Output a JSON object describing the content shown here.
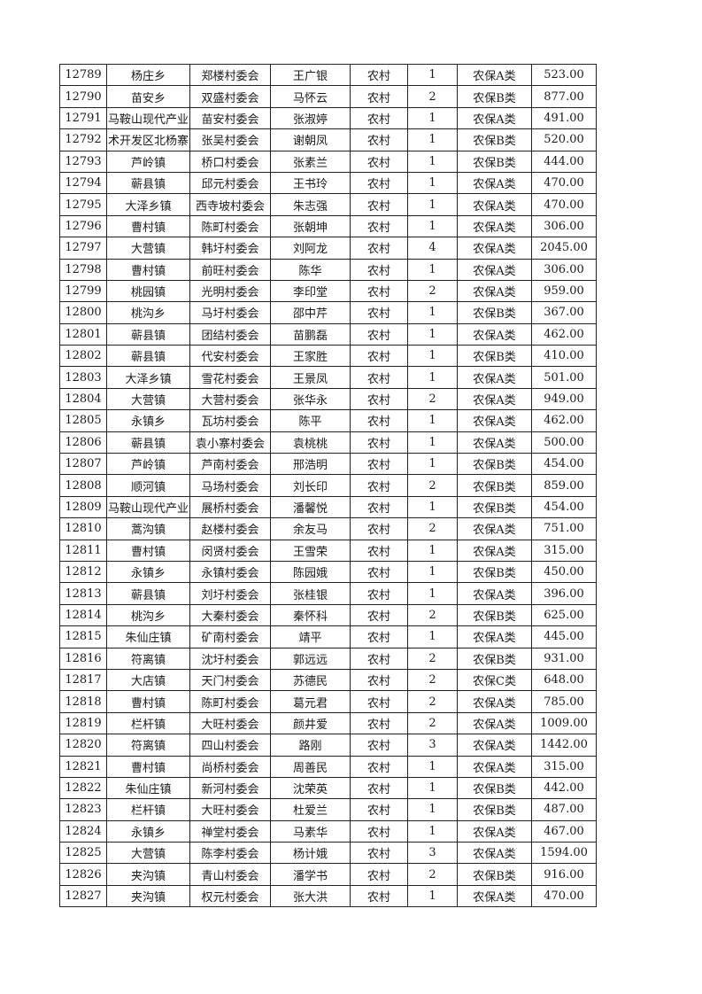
{
  "table": {
    "rows": [
      [
        "12789",
        "杨庄乡",
        "郑楼村委会",
        "王广银",
        "农村",
        "1",
        "农保A类",
        "523.00"
      ],
      [
        "12790",
        "苗安乡",
        "双盛村委会",
        "马怀云",
        "农村",
        "2",
        "农保B类",
        "877.00"
      ],
      [
        "12791",
        "马鞍山现代产业",
        "苗安村委会",
        "张淑婷",
        "农村",
        "1",
        "农保A类",
        "491.00"
      ],
      [
        "12792",
        "术开发区北杨寨",
        "张吴村委会",
        "谢朝凤",
        "农村",
        "1",
        "农保B类",
        "520.00"
      ],
      [
        "12793",
        "芦岭镇",
        "桥口村委会",
        "张素兰",
        "农村",
        "1",
        "农保B类",
        "444.00"
      ],
      [
        "12794",
        "蕲县镇",
        "邱元村委会",
        "王书玲",
        "农村",
        "1",
        "农保A类",
        "470.00"
      ],
      [
        "12795",
        "大泽乡镇",
        "西寺坡村委会",
        "朱志强",
        "农村",
        "1",
        "农保A类",
        "470.00"
      ],
      [
        "12796",
        "曹村镇",
        "陈町村委会",
        "张朝坤",
        "农村",
        "1",
        "农保A类",
        "306.00"
      ],
      [
        "12797",
        "大营镇",
        "韩圩村委会",
        "刘阿龙",
        "农村",
        "4",
        "农保A类",
        "2045.00"
      ],
      [
        "12798",
        "曹村镇",
        "前旺村委会",
        "陈华",
        "农村",
        "1",
        "农保A类",
        "306.00"
      ],
      [
        "12799",
        "桃园镇",
        "光明村委会",
        "李印堂",
        "农村",
        "2",
        "农保A类",
        "959.00"
      ],
      [
        "12800",
        "桃沟乡",
        "马圩村委会",
        "邵中芹",
        "农村",
        "1",
        "农保B类",
        "367.00"
      ],
      [
        "12801",
        "蕲县镇",
        "团结村委会",
        "苗鹏磊",
        "农村",
        "1",
        "农保A类",
        "462.00"
      ],
      [
        "12802",
        "蕲县镇",
        "代安村委会",
        "王家胜",
        "农村",
        "1",
        "农保B类",
        "410.00"
      ],
      [
        "12803",
        "大泽乡镇",
        "雪花村委会",
        "王景凤",
        "农村",
        "1",
        "农保A类",
        "501.00"
      ],
      [
        "12804",
        "大营镇",
        "大营村委会",
        "张华永",
        "农村",
        "2",
        "农保A类",
        "949.00"
      ],
      [
        "12805",
        "永镇乡",
        "瓦坊村委会",
        "陈平",
        "农村",
        "1",
        "农保A类",
        "462.00"
      ],
      [
        "12806",
        "蕲县镇",
        "袁小寨村委会",
        "袁桃桃",
        "农村",
        "1",
        "农保A类",
        "500.00"
      ],
      [
        "12807",
        "芦岭镇",
        "芦南村委会",
        "邢浩明",
        "农村",
        "1",
        "农保B类",
        "454.00"
      ],
      [
        "12808",
        "顺河镇",
        "马场村委会",
        "刘长印",
        "农村",
        "2",
        "农保B类",
        "859.00"
      ],
      [
        "12809",
        "马鞍山现代产业",
        "展桥村委会",
        "潘馨悦",
        "农村",
        "1",
        "农保B类",
        "454.00"
      ],
      [
        "12810",
        "蒿沟镇",
        "赵楼村委会",
        "余友马",
        "农村",
        "2",
        "农保A类",
        "751.00"
      ],
      [
        "12811",
        "曹村镇",
        "闵贤村委会",
        "王雪荣",
        "农村",
        "1",
        "农保A类",
        "315.00"
      ],
      [
        "12812",
        "永镇乡",
        "永镇村委会",
        "陈园娥",
        "农村",
        "1",
        "农保B类",
        "450.00"
      ],
      [
        "12813",
        "蕲县镇",
        "刘圩村委会",
        "张桂银",
        "农村",
        "1",
        "农保A类",
        "396.00"
      ],
      [
        "12814",
        "桃沟乡",
        "大秦村委会",
        "秦怀科",
        "农村",
        "2",
        "农保B类",
        "625.00"
      ],
      [
        "12815",
        "朱仙庄镇",
        "矿南村委会",
        "靖平",
        "农村",
        "1",
        "农保A类",
        "445.00"
      ],
      [
        "12816",
        "符离镇",
        "沈圩村委会",
        "郭远远",
        "农村",
        "2",
        "农保B类",
        "931.00"
      ],
      [
        "12817",
        "大店镇",
        "天门村委会",
        "苏德民",
        "农村",
        "2",
        "农保C类",
        "648.00"
      ],
      [
        "12818",
        "曹村镇",
        "陈町村委会",
        "葛元君",
        "农村",
        "2",
        "农保A类",
        "785.00"
      ],
      [
        "12819",
        "栏杆镇",
        "大旺村委会",
        "颜井爱",
        "农村",
        "2",
        "农保A类",
        "1009.00"
      ],
      [
        "12820",
        "符离镇",
        "四山村委会",
        "路刚",
        "农村",
        "3",
        "农保A类",
        "1442.00"
      ],
      [
        "12821",
        "曹村镇",
        "尚桥村委会",
        "周善民",
        "农村",
        "1",
        "农保A类",
        "315.00"
      ],
      [
        "12822",
        "朱仙庄镇",
        "新河村委会",
        "沈荣英",
        "农村",
        "1",
        "农保B类",
        "442.00"
      ],
      [
        "12823",
        "栏杆镇",
        "大旺村委会",
        "杜爱兰",
        "农村",
        "1",
        "农保B类",
        "487.00"
      ],
      [
        "12824",
        "永镇乡",
        "禅堂村委会",
        "马素华",
        "农村",
        "1",
        "农保A类",
        "467.00"
      ],
      [
        "12825",
        "大营镇",
        "陈李村委会",
        "杨计娥",
        "农村",
        "3",
        "农保A类",
        "1594.00"
      ],
      [
        "12826",
        "夹沟镇",
        "青山村委会",
        "潘学书",
        "农村",
        "2",
        "农保B类",
        "916.00"
      ],
      [
        "12827",
        "夹沟镇",
        "权元村委会",
        "张大洪",
        "农村",
        "1",
        "农保A类",
        "470.00"
      ]
    ]
  }
}
